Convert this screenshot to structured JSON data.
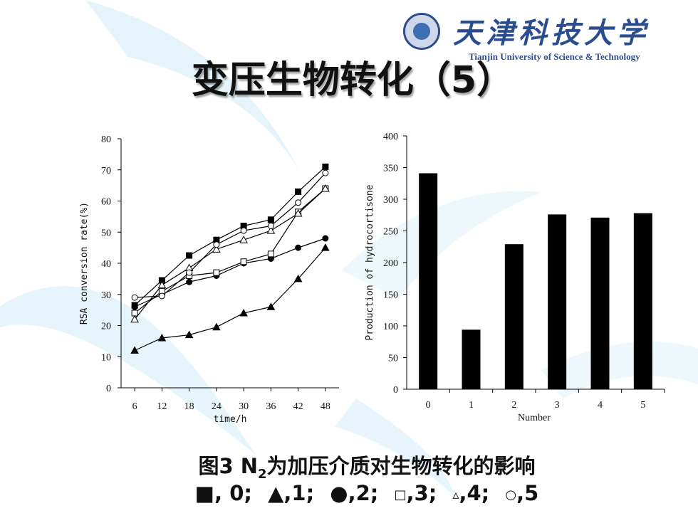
{
  "header": {
    "title": "变压生物转化（5）",
    "logo_cn": "天津科技大学",
    "logo_en": "Tianjin University of Science & Technology"
  },
  "caption": {
    "line1_pre": "图3 N",
    "line1_sub": "2",
    "line1_post": "为加压介质对生物转化的影响",
    "legend": [
      {
        "symbol": "■",
        "label": ", 0;"
      },
      {
        "symbol": "▲",
        "label": ",1;"
      },
      {
        "symbol": "●",
        "label": ",2;"
      },
      {
        "symbol": "□",
        "label": ",3;"
      },
      {
        "symbol": "▵",
        "label": ",4;"
      },
      {
        "symbol": "○",
        "label": ",5"
      }
    ]
  },
  "chart_data": [
    {
      "type": "line",
      "xlabel": "time/h",
      "ylabel": "RSA conversion rate(%)",
      "x": [
        6,
        12,
        18,
        24,
        30,
        36,
        42,
        48
      ],
      "ylim": [
        0,
        80
      ],
      "yticks": [
        0,
        10,
        20,
        30,
        40,
        50,
        60,
        70,
        80
      ],
      "series": [
        {
          "marker": "square-filled",
          "values": [
            26.5,
            34.5,
            42.5,
            47.5,
            52,
            54,
            63,
            71
          ]
        },
        {
          "marker": "triangle-filled",
          "values": [
            12,
            16,
            17,
            19.5,
            24,
            26,
            35,
            45
          ]
        },
        {
          "marker": "circle-filled",
          "values": [
            26,
            30,
            34,
            36,
            40,
            41.5,
            45,
            48
          ]
        },
        {
          "marker": "square-open",
          "values": [
            24,
            31,
            36,
            37,
            40.5,
            43,
            56.5,
            64
          ]
        },
        {
          "marker": "triangle-open",
          "values": [
            22,
            33,
            38.5,
            44.5,
            47.5,
            50.5,
            56,
            64
          ]
        },
        {
          "marker": "circle-open",
          "values": [
            29,
            29.5,
            37,
            46,
            50.5,
            52,
            59.5,
            69
          ]
        }
      ]
    },
    {
      "type": "bar",
      "xlabel": "Number",
      "ylabel": "Production of hydrocortisone",
      "categories": [
        "0",
        "1",
        "2",
        "3",
        "4",
        "5"
      ],
      "values": [
        341,
        94,
        229,
        276,
        271,
        278
      ],
      "ylim": [
        0,
        400
      ],
      "yticks": [
        0,
        50,
        100,
        150,
        200,
        250,
        300,
        350,
        400
      ]
    }
  ]
}
